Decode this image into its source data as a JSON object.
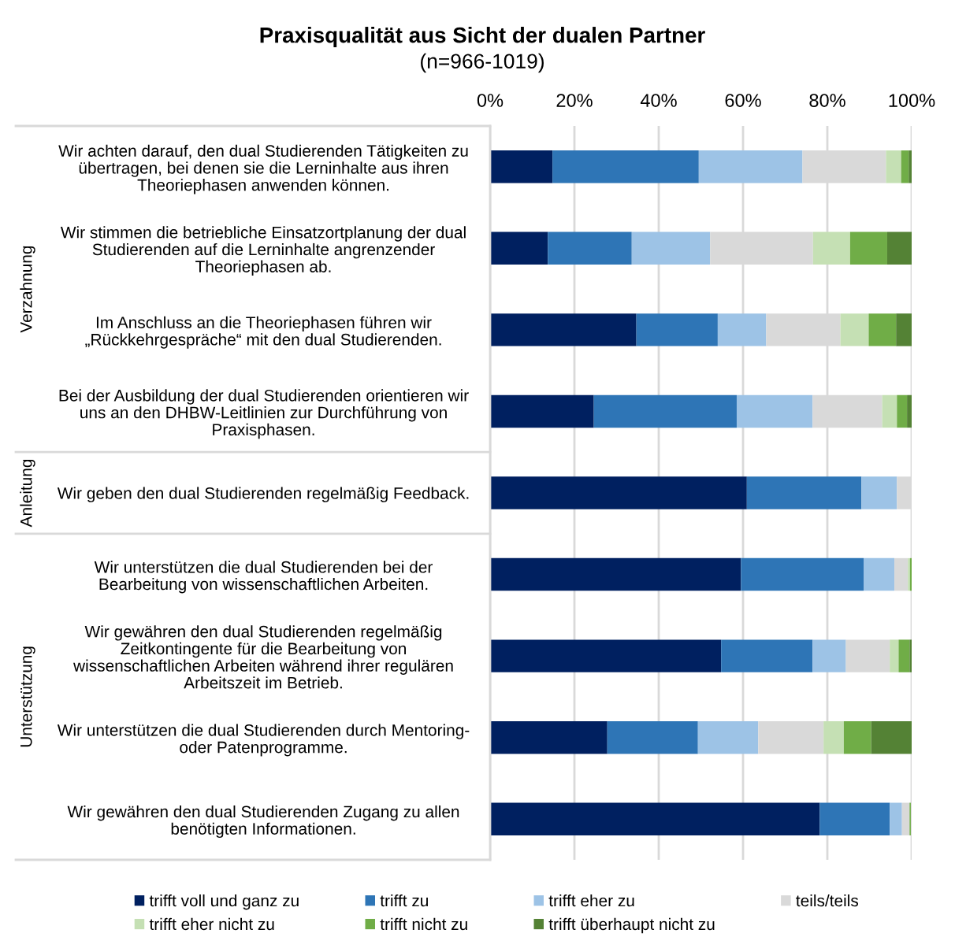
{
  "chart_data": {
    "type": "bar",
    "orientation": "horizontal",
    "stacked": true,
    "title": "Praxisqualität aus Sicht der dualen Partner",
    "subtitle": "(n=966-1019)",
    "categories": [
      "Wir achten darauf, den dual Studierenden Tätigkeiten zu\nübertragen, bei denen sie die Lerninhalte aus ihren\nTheoriephasen anwenden können.",
      "Wir stimmen die betriebliche Einsatzortplanung der dual\nStudierenden auf die Lerninhalte angrenzender\nTheoriephasen ab.",
      "Im Anschluss an die Theoriephasen führen wir\n„Rückkehrgespräche“ mit den dual Studierenden.",
      "Bei der Ausbildung der dual Studierenden orientieren wir\nuns an den DHBW-Leitlinien zur Durchführung von\nPraxisphasen.",
      "Wir geben den dual Studierenden regelmäßig Feedback.",
      "Wir unterstützen die dual Studierenden bei der\nBearbeitung von wissenschaftlichen Arbeiten.",
      "Wir gewähren den dual Studierenden regelmäßig\nZeitkontingente für die Bearbeitung von\nwissenschaftlichen Arbeiten während ihrer regulären\nArbeitszeit im Betrieb.",
      "Wir unterstützen die dual Studierenden durch Mentoring-\noder Patenprogramme.",
      "Wir gewähren den dual Studierenden Zugang zu allen\nbenötigten Informationen."
    ],
    "annotations": [
      "Verzahnung",
      "Anleitung",
      "Unterstützung"
    ],
    "series": [
      {
        "name": "trifft voll und ganz zu",
        "color": "#002060",
        "values": [
          14.8,
          13.7,
          34.7,
          24.6,
          60.9,
          59.5,
          54.8,
          27.8,
          78.2
        ]
      },
      {
        "name": "trifft zu",
        "color": "#2e75b6",
        "values": [
          34.7,
          19.9,
          19.3,
          33.9,
          27.2,
          29.1,
          21.7,
          21.5,
          16.6
        ]
      },
      {
        "name": "trifft eher zu",
        "color": "#9dc3e6",
        "values": [
          24.6,
          18.6,
          11.5,
          18.0,
          8.4,
          7.3,
          7.9,
          14.3,
          2.9
        ]
      },
      {
        "name": "teils/teils",
        "color": "#d9d9d9",
        "values": [
          19.8,
          24.4,
          17.6,
          16.5,
          3.5,
          3.2,
          10.4,
          15.5,
          1.8
        ]
      },
      {
        "name": "trifft eher nicht zu",
        "color": "#c5e0b4",
        "values": [
          3.6,
          8.8,
          6.7,
          3.5,
          0,
          0.5,
          2.1,
          4.8,
          null
        ]
      },
      {
        "name": "trifft nicht zu",
        "color": "#70ad47",
        "values": [
          1.8,
          8.8,
          6.5,
          2.4,
          0,
          0.4,
          2.6,
          6.5,
          0.3
        ]
      },
      {
        "name": "trifft überhaupt nicht zu",
        "color": "#548235",
        "values": [
          0.7,
          5.8,
          3.7,
          1.1,
          0,
          0,
          0.5,
          9.6,
          0
        ]
      }
    ],
    "xlim": [
      0,
      100
    ],
    "xticks": [
      {
        "value": 0,
        "label": "0%"
      },
      {
        "value": 20,
        "label": "20%"
      },
      {
        "value": 40,
        "label": "40%"
      },
      {
        "value": 60,
        "label": "60%"
      },
      {
        "value": 80,
        "label": "80%"
      },
      {
        "value": 100,
        "label": "100%"
      }
    ],
    "grid": "x",
    "legend": "bottom"
  }
}
